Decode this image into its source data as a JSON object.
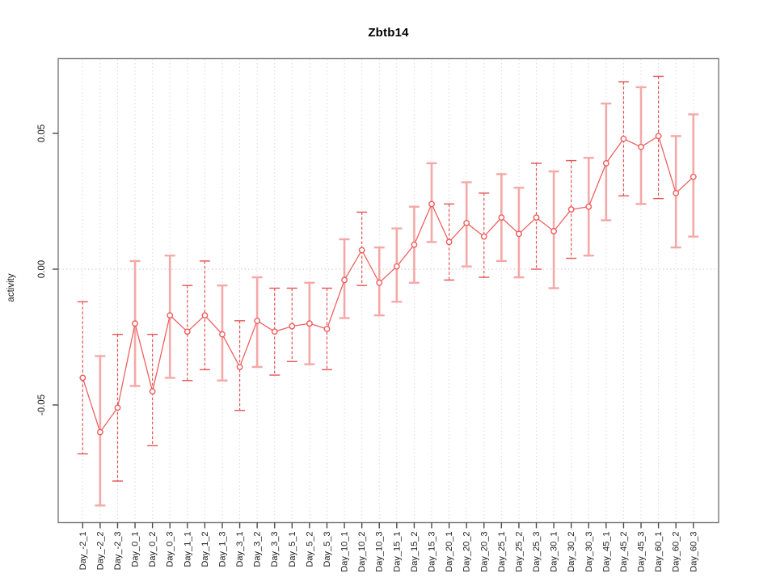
{
  "title": "Zbtb14",
  "colors": {
    "background": "#ffffff",
    "point_line_red": "#f05b5b",
    "errorbar_solid_pink": "#f5a8a8",
    "errorbar_dashed_red": "#e65454",
    "grid_gray": "#dcdcdc",
    "zero_line_gray": "#c9c9c9",
    "axis_gray": "#7a7a7a",
    "tick_gray": "#4a4a4a",
    "text_black": "#1a1a1a"
  },
  "chart_data": {
    "type": "scatter",
    "title": "Zbtb14",
    "xlabel": "",
    "ylabel": "activity",
    "ylim": [
      -0.093,
      0.078
    ],
    "y_ticks": [
      {
        "label": "0.05",
        "value": 0.05
      },
      {
        "label": "0.00",
        "value": 0.0
      },
      {
        "label": "-0.05",
        "value": -0.05
      }
    ],
    "zero_reference_line": 0,
    "grid": {
      "vertical_dotted_per_category": true,
      "horizontal_dotted_at_zero": true
    },
    "legend_position": "none",
    "point_marker": "open-circle",
    "series_name": "activity",
    "points": [
      {
        "label": "Day_-2_1",
        "value": -0.04,
        "lo": -0.068,
        "hi": -0.012,
        "style": "dashed"
      },
      {
        "label": "Day_-2_2",
        "value": -0.06,
        "lo": -0.087,
        "hi": -0.032,
        "style": "solid"
      },
      {
        "label": "Day_-2_3",
        "value": -0.051,
        "lo": -0.078,
        "hi": -0.024,
        "style": "dashed"
      },
      {
        "label": "Day_0_1",
        "value": -0.02,
        "lo": -0.043,
        "hi": 0.003,
        "style": "solid"
      },
      {
        "label": "Day_0_2",
        "value": -0.045,
        "lo": -0.065,
        "hi": -0.024,
        "style": "dashed"
      },
      {
        "label": "Day_0_3",
        "value": -0.017,
        "lo": -0.04,
        "hi": 0.005,
        "style": "solid"
      },
      {
        "label": "Day_1_1",
        "value": -0.023,
        "lo": -0.041,
        "hi": -0.006,
        "style": "dashed"
      },
      {
        "label": "Day_1_2",
        "value": -0.017,
        "lo": -0.037,
        "hi": 0.003,
        "style": "dashed"
      },
      {
        "label": "Day_1_3",
        "value": -0.024,
        "lo": -0.041,
        "hi": -0.006,
        "style": "solid"
      },
      {
        "label": "Day_3_1",
        "value": -0.036,
        "lo": -0.052,
        "hi": -0.019,
        "style": "dashed"
      },
      {
        "label": "Day_3_2",
        "value": -0.019,
        "lo": -0.036,
        "hi": -0.003,
        "style": "solid"
      },
      {
        "label": "Day_3_3",
        "value": -0.023,
        "lo": -0.039,
        "hi": -0.007,
        "style": "dashed"
      },
      {
        "label": "Day_5_1",
        "value": -0.021,
        "lo": -0.034,
        "hi": -0.007,
        "style": "dashed"
      },
      {
        "label": "Day_5_2",
        "value": -0.02,
        "lo": -0.035,
        "hi": -0.005,
        "style": "solid"
      },
      {
        "label": "Day_5_3",
        "value": -0.022,
        "lo": -0.037,
        "hi": -0.007,
        "style": "dashed"
      },
      {
        "label": "Day_10_1",
        "value": -0.004,
        "lo": -0.018,
        "hi": 0.011,
        "style": "solid"
      },
      {
        "label": "Day_10_2",
        "value": 0.007,
        "lo": -0.006,
        "hi": 0.021,
        "style": "dashed"
      },
      {
        "label": "Day_10_3",
        "value": -0.005,
        "lo": -0.017,
        "hi": 0.008,
        "style": "solid"
      },
      {
        "label": "Day_15_1",
        "value": 0.001,
        "lo": -0.012,
        "hi": 0.015,
        "style": "solid"
      },
      {
        "label": "Day_15_2",
        "value": 0.009,
        "lo": -0.005,
        "hi": 0.023,
        "style": "solid"
      },
      {
        "label": "Day_15_3",
        "value": 0.024,
        "lo": 0.01,
        "hi": 0.039,
        "style": "solid"
      },
      {
        "label": "Day_20_1",
        "value": 0.01,
        "lo": -0.004,
        "hi": 0.024,
        "style": "dashed"
      },
      {
        "label": "Day_20_2",
        "value": 0.017,
        "lo": 0.001,
        "hi": 0.032,
        "style": "solid"
      },
      {
        "label": "Day_20_3",
        "value": 0.012,
        "lo": -0.003,
        "hi": 0.028,
        "style": "dashed"
      },
      {
        "label": "Day_25_1",
        "value": 0.019,
        "lo": 0.003,
        "hi": 0.035,
        "style": "solid"
      },
      {
        "label": "Day_25_2",
        "value": 0.013,
        "lo": -0.003,
        "hi": 0.03,
        "style": "solid"
      },
      {
        "label": "Day_25_3",
        "value": 0.019,
        "lo": 0.0,
        "hi": 0.039,
        "style": "dashed"
      },
      {
        "label": "Day_30_1",
        "value": 0.014,
        "lo": -0.007,
        "hi": 0.036,
        "style": "solid"
      },
      {
        "label": "Day_30_2",
        "value": 0.022,
        "lo": 0.004,
        "hi": 0.04,
        "style": "dashed"
      },
      {
        "label": "Day_30_3",
        "value": 0.023,
        "lo": 0.005,
        "hi": 0.041,
        "style": "solid"
      },
      {
        "label": "Day_45_1",
        "value": 0.039,
        "lo": 0.018,
        "hi": 0.061,
        "style": "solid"
      },
      {
        "label": "Day_45_2",
        "value": 0.048,
        "lo": 0.027,
        "hi": 0.069,
        "style": "dashed"
      },
      {
        "label": "Day_45_3",
        "value": 0.045,
        "lo": 0.024,
        "hi": 0.067,
        "style": "solid"
      },
      {
        "label": "Day_60_1",
        "value": 0.049,
        "lo": 0.026,
        "hi": 0.071,
        "style": "dashed"
      },
      {
        "label": "Day_60_2",
        "value": 0.028,
        "lo": 0.008,
        "hi": 0.049,
        "style": "solid"
      },
      {
        "label": "Day_60_3",
        "value": 0.034,
        "lo": 0.012,
        "hi": 0.057,
        "style": "solid"
      }
    ]
  }
}
